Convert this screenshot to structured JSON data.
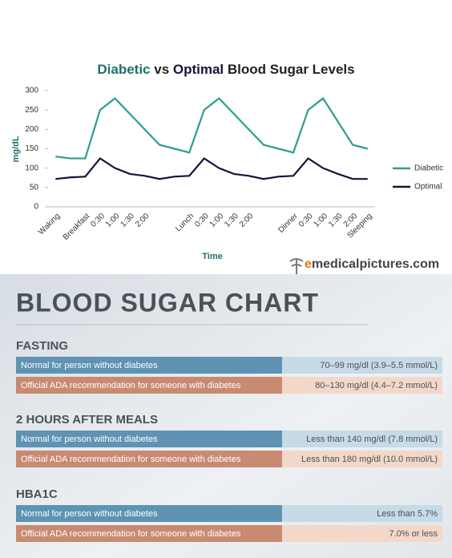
{
  "chart_data": {
    "type": "line",
    "title_segments": [
      "Diabetic",
      " vs ",
      "Optimal",
      " Blood Sugar Levels"
    ],
    "x_label": "Time",
    "y_label": "mg/dL",
    "categories": [
      "Waking",
      null,
      "Breakfast",
      "0:30",
      "1:00",
      "1:30",
      "2:00",
      null,
      null,
      "Lunch",
      "0:30",
      "1:00",
      "1:30",
      "2:00",
      null,
      null,
      "Dinner",
      "0:30",
      "1:00",
      "1:30",
      "2:00",
      "Sleeping"
    ],
    "series": [
      {
        "name": "Diabetic",
        "color": "#2a9d8f",
        "values": [
          130,
          125,
          125,
          250,
          280,
          240,
          200,
          160,
          150,
          140,
          250,
          280,
          240,
          200,
          160,
          150,
          140,
          250,
          280,
          220,
          160,
          150
        ]
      },
      {
        "name": "Optimal",
        "color": "#14143c",
        "values": [
          72,
          76,
          78,
          125,
          100,
          85,
          80,
          72,
          78,
          80,
          125,
          100,
          85,
          80,
          72,
          78,
          80,
          125,
          100,
          85,
          72,
          72
        ]
      }
    ],
    "ylim": [
      0,
      300
    ],
    "yticks": [
      0,
      50,
      100,
      150,
      200,
      250,
      300
    ],
    "grid": false,
    "legend": "right"
  },
  "watermark": {
    "accent": "e",
    "rest": "medicalpictures.com"
  },
  "blood_sugar_chart": {
    "title": "BLOOD SUGAR CHART",
    "sections": [
      {
        "heading": "FASTING",
        "rows": [
          {
            "label": "Normal for person without diabetes",
            "value": "70–99 mg/dl (3.9–5.5 mmol/L)"
          },
          {
            "label": "Official ADA recommendation for someone with diabetes",
            "value": "80–130 mg/dl (4.4–7.2 mmol/L)"
          }
        ]
      },
      {
        "heading": "2 HOURS AFTER MEALS",
        "rows": [
          {
            "label": "Normal for person without diabetes",
            "value": "Less than 140 mg/dl (7.8 mmol/L)"
          },
          {
            "label": "Official ADA recommendation for someone with diabetes",
            "value": "Less than 180 mg/dl (10.0 mmol/L)"
          }
        ]
      },
      {
        "heading": "HBA1C",
        "rows": [
          {
            "label": "Normal for person without diabetes",
            "value": "Less than 5.7%"
          },
          {
            "label": "Official ADA recommendation for someone with diabetes",
            "value": "7.0% or less"
          }
        ]
      }
    ]
  }
}
